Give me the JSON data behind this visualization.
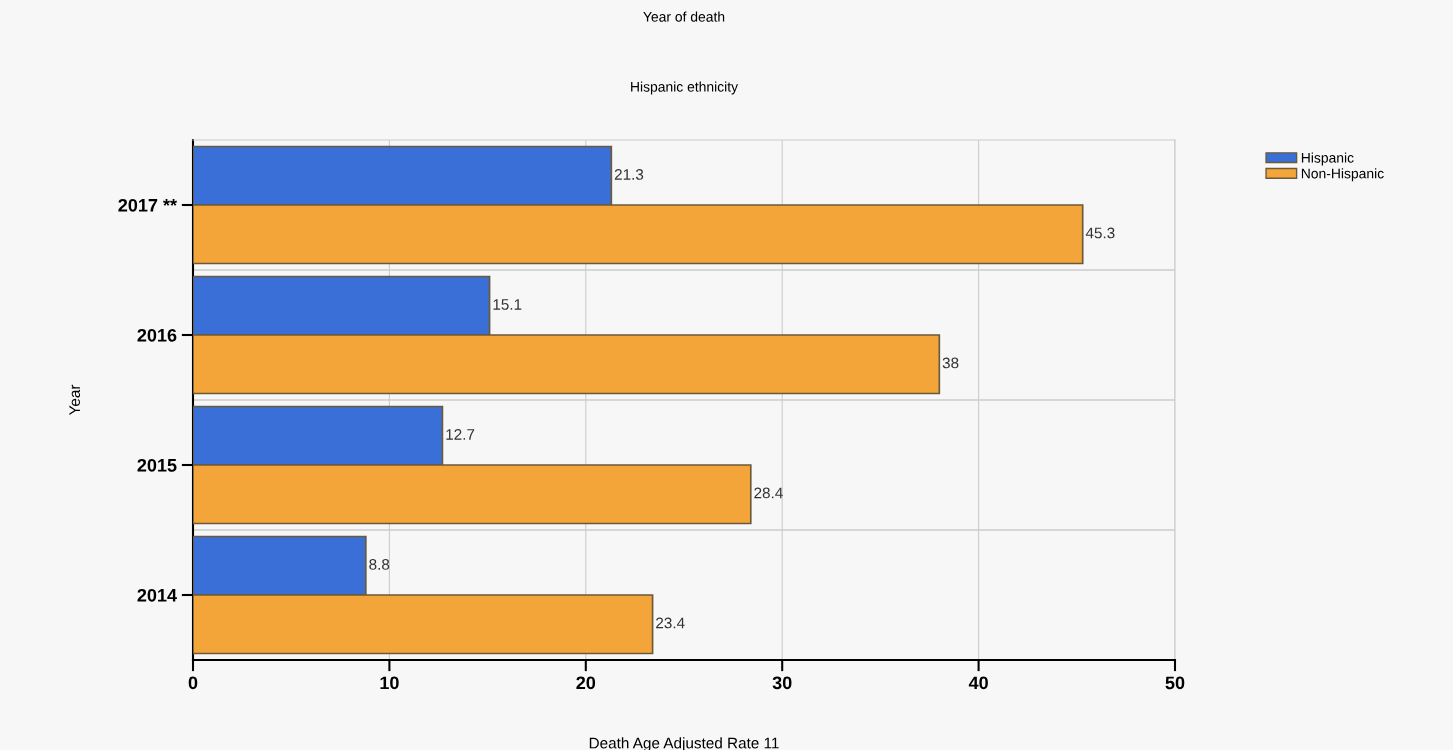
{
  "chart_data": {
    "type": "bar",
    "orientation": "horizontal",
    "title": "Year of death",
    "subtitle": "Hispanic ethnicity",
    "xlabel": "Death Age Adjusted Rate 11",
    "ylabel": "Year",
    "categories": [
      "2017 **",
      "2016",
      "2015",
      "2014"
    ],
    "series": [
      {
        "name": "Hispanic",
        "color": "#3a6fd8",
        "values": [
          21.3,
          15.1,
          12.7,
          8.8
        ]
      },
      {
        "name": "Non-Hispanic",
        "color": "#f4a53a",
        "values": [
          45.3,
          38,
          28.4,
          23.4
        ]
      }
    ],
    "xlim": [
      0,
      50
    ],
    "xticks": [
      0,
      10,
      20,
      30,
      40,
      50
    ],
    "grid": true,
    "legend": "top right",
    "data_labels": true
  }
}
